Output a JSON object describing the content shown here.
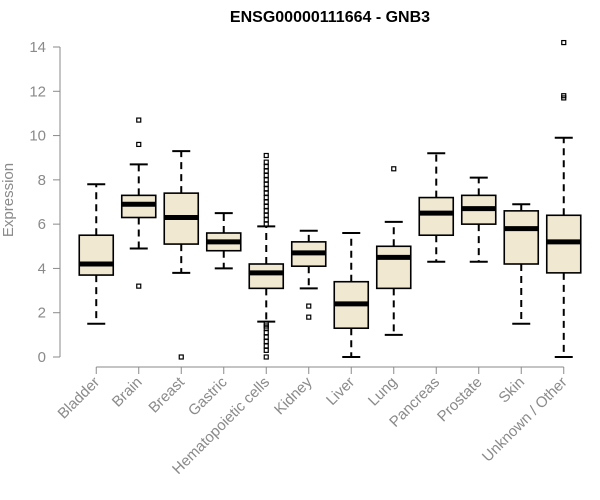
{
  "chart_data": {
    "type": "boxplot",
    "title": "ENSG00000111664 - GNB3",
    "xlabel": "",
    "ylabel": "Expression",
    "ylim": [
      0,
      14
    ],
    "yticks": [
      0,
      2,
      4,
      6,
      8,
      10,
      12,
      14
    ],
    "grid": false,
    "box_fill": "#f0e8d0",
    "categories": [
      "Bladder",
      "Brain",
      "Breast",
      "Gastric",
      "Hematopoietic cells",
      "Kidney",
      "Liver",
      "Lung",
      "Pancreas",
      "Prostate",
      "Skin",
      "Unknown / Other"
    ],
    "boxes": [
      {
        "category": "Bladder",
        "whisker_low": 1.5,
        "q1": 3.7,
        "median": 4.2,
        "q3": 5.5,
        "whisker_high": 7.8,
        "outliers": []
      },
      {
        "category": "Brain",
        "whisker_low": 4.9,
        "q1": 6.3,
        "median": 6.9,
        "q3": 7.3,
        "whisker_high": 8.7,
        "outliers": [
          3.2,
          9.6,
          10.7
        ]
      },
      {
        "category": "Breast",
        "whisker_low": 3.8,
        "q1": 5.1,
        "median": 6.3,
        "q3": 7.4,
        "whisker_high": 9.3,
        "outliers": [
          0.0
        ]
      },
      {
        "category": "Gastric",
        "whisker_low": 4.0,
        "q1": 4.8,
        "median": 5.2,
        "q3": 5.6,
        "whisker_high": 6.5,
        "outliers": []
      },
      {
        "category": "Hematopoietic cells",
        "whisker_low": 1.6,
        "q1": 3.1,
        "median": 3.8,
        "q3": 4.2,
        "whisker_high": 5.9,
        "outliers": [
          0.0,
          0.3,
          0.5,
          0.7,
          0.9,
          1.1,
          1.3,
          1.4,
          1.5,
          6.0,
          6.2,
          6.4,
          6.6,
          6.8,
          7.0,
          7.2,
          7.4,
          7.6,
          7.8,
          8.0,
          8.2,
          8.4,
          8.6,
          8.8,
          9.1
        ]
      },
      {
        "category": "Kidney",
        "whisker_low": 3.1,
        "q1": 4.1,
        "median": 4.7,
        "q3": 5.2,
        "whisker_high": 5.7,
        "outliers": [
          1.8,
          2.3
        ]
      },
      {
        "category": "Liver",
        "whisker_low": 0.0,
        "q1": 1.3,
        "median": 2.4,
        "q3": 3.4,
        "whisker_high": 5.6,
        "outliers": []
      },
      {
        "category": "Lung",
        "whisker_low": 1.0,
        "q1": 3.1,
        "median": 4.5,
        "q3": 5.0,
        "whisker_high": 6.1,
        "outliers": [
          8.5
        ]
      },
      {
        "category": "Pancreas",
        "whisker_low": 4.3,
        "q1": 5.5,
        "median": 6.5,
        "q3": 7.2,
        "whisker_high": 9.2,
        "outliers": []
      },
      {
        "category": "Prostate",
        "whisker_low": 4.3,
        "q1": 6.0,
        "median": 6.7,
        "q3": 7.3,
        "whisker_high": 8.1,
        "outliers": []
      },
      {
        "category": "Skin",
        "whisker_low": 1.5,
        "q1": 4.2,
        "median": 5.8,
        "q3": 6.6,
        "whisker_high": 6.9,
        "outliers": []
      },
      {
        "category": "Unknown / Other",
        "whisker_low": 0.0,
        "q1": 3.8,
        "median": 5.2,
        "q3": 6.4,
        "whisker_high": 9.9,
        "outliers": [
          11.7,
          11.8,
          14.2
        ]
      }
    ]
  }
}
